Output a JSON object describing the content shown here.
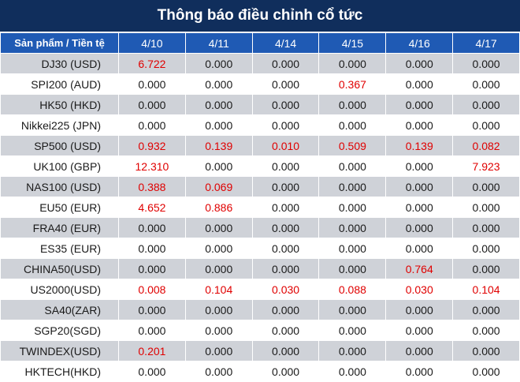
{
  "title": "Thông báo điều chỉnh cổ tức",
  "header": {
    "product_label": "Sản phẩm / Tiền tệ",
    "dates": [
      "4/10",
      "4/11",
      "4/14",
      "4/15",
      "4/16",
      "4/17"
    ]
  },
  "rows": [
    {
      "name": "DJ30 (USD)",
      "values": [
        "6.722",
        "0.000",
        "0.000",
        "0.000",
        "0.000",
        "0.000"
      ]
    },
    {
      "name": "SPI200 (AUD)",
      "values": [
        "0.000",
        "0.000",
        "0.000",
        "0.367",
        "0.000",
        "0.000"
      ]
    },
    {
      "name": "HK50 (HKD)",
      "values": [
        "0.000",
        "0.000",
        "0.000",
        "0.000",
        "0.000",
        "0.000"
      ]
    },
    {
      "name": "Nikkei225 (JPN)",
      "values": [
        "0.000",
        "0.000",
        "0.000",
        "0.000",
        "0.000",
        "0.000"
      ]
    },
    {
      "name": "SP500 (USD)",
      "values": [
        "0.932",
        "0.139",
        "0.010",
        "0.509",
        "0.139",
        "0.082"
      ]
    },
    {
      "name": "UK100 (GBP)",
      "values": [
        "12.310",
        "0.000",
        "0.000",
        "0.000",
        "0.000",
        "7.923"
      ]
    },
    {
      "name": "NAS100 (USD)",
      "values": [
        "0.388",
        "0.069",
        "0.000",
        "0.000",
        "0.000",
        "0.000"
      ]
    },
    {
      "name": "EU50 (EUR)",
      "values": [
        "4.652",
        "0.886",
        "0.000",
        "0.000",
        "0.000",
        "0.000"
      ]
    },
    {
      "name": "FRA40 (EUR)",
      "values": [
        "0.000",
        "0.000",
        "0.000",
        "0.000",
        "0.000",
        "0.000"
      ]
    },
    {
      "name": "ES35 (EUR)",
      "values": [
        "0.000",
        "0.000",
        "0.000",
        "0.000",
        "0.000",
        "0.000"
      ]
    },
    {
      "name": "CHINA50(USD)",
      "values": [
        "0.000",
        "0.000",
        "0.000",
        "0.000",
        "0.764",
        "0.000"
      ]
    },
    {
      "name": "US2000(USD)",
      "values": [
        "0.008",
        "0.104",
        "0.030",
        "0.088",
        "0.030",
        "0.104"
      ]
    },
    {
      "name": "SA40(ZAR)",
      "values": [
        "0.000",
        "0.000",
        "0.000",
        "0.000",
        "0.000",
        "0.000"
      ]
    },
    {
      "name": "SGP20(SGD)",
      "values": [
        "0.000",
        "0.000",
        "0.000",
        "0.000",
        "0.000",
        "0.000"
      ]
    },
    {
      "name": "TWINDEX(USD)",
      "values": [
        "0.201",
        "0.000",
        "0.000",
        "0.000",
        "0.000",
        "0.000"
      ]
    },
    {
      "name": "HKTECH(HKD)",
      "values": [
        "0.000",
        "0.000",
        "0.000",
        "0.000",
        "0.000",
        "0.000"
      ]
    }
  ],
  "colors": {
    "title_bg": "#102e5c",
    "header_bg": "#1f5ab4",
    "stripe_bg": "#cfd2d8",
    "positive_value": "#e00000"
  }
}
